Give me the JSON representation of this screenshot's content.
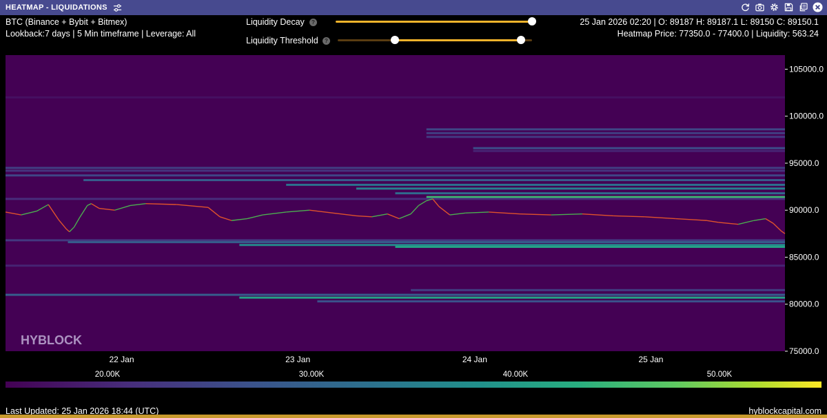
{
  "window": {
    "title": "HEATMAP - LIQUIDATIONS",
    "toolbar_icons": [
      "refresh-icon",
      "camera-icon",
      "gear-icon",
      "save-icon",
      "copy-icon",
      "close-icon"
    ]
  },
  "info": {
    "symbol": "BTC (Binance + Bybit + Bitmex)",
    "lookback": "Lookback:7 days | 5 Min timeframe | Leverage: All",
    "ohlc": "25 Jan 2026 02:20 | O: 89187 H: 89187.1 L: 89150 C: 89150.1",
    "heatmap_price": "Heatmap Price: 77350.0 - 77400.0 | Liquidity: 563.24"
  },
  "controls": {
    "decay_label": "Liquidity Decay",
    "threshold_label": "Liquidity Threshold",
    "help_glyph": "?",
    "decay_value": 1.0,
    "threshold_range": [
      0.29,
      0.94
    ]
  },
  "chart_data": {
    "type": "heatmap",
    "title": "",
    "watermark": "HYBLOCK",
    "x_ticks": [
      "22 Jan",
      "23 Jan",
      "24 Jan",
      "25 Jan"
    ],
    "y_ticks": [
      "105000.0",
      "100000.0",
      "95000.0",
      "90000.0",
      "85000.0",
      "80000.0",
      "75000.0"
    ],
    "ylim": [
      75000,
      106500
    ],
    "x_tick_fraction": [
      0.149,
      0.375,
      0.602,
      0.828
    ],
    "liquidation_bands": [
      {
        "price": 102000,
        "start": 0.0,
        "intensity": 0.05
      },
      {
        "price": 98600,
        "start": 0.54,
        "intensity": 0.25
      },
      {
        "price": 98200,
        "start": 0.54,
        "intensity": 0.22
      },
      {
        "price": 97800,
        "start": 0.54,
        "intensity": 0.2
      },
      {
        "price": 96600,
        "start": 0.6,
        "intensity": 0.28
      },
      {
        "price": 96300,
        "start": 0.6,
        "intensity": 0.12
      },
      {
        "price": 94500,
        "start": 0.0,
        "intensity": 0.22
      },
      {
        "price": 94200,
        "start": 0.0,
        "intensity": 0.18
      },
      {
        "price": 93700,
        "start": 0.0,
        "intensity": 0.25
      },
      {
        "price": 93200,
        "start": 0.1,
        "intensity": 0.35
      },
      {
        "price": 92700,
        "start": 0.36,
        "intensity": 0.45
      },
      {
        "price": 92300,
        "start": 0.45,
        "intensity": 0.5
      },
      {
        "price": 91800,
        "start": 0.5,
        "intensity": 0.42
      },
      {
        "price": 91400,
        "start": 0.54,
        "intensity": 0.75
      },
      {
        "price": 91200,
        "start": 0.0,
        "intensity": 0.15
      },
      {
        "price": 86800,
        "start": 0.0,
        "intensity": 0.2
      },
      {
        "price": 86600,
        "start": 0.08,
        "intensity": 0.35
      },
      {
        "price": 86300,
        "start": 0.3,
        "intensity": 0.55
      },
      {
        "price": 86100,
        "start": 0.5,
        "intensity": 0.65
      },
      {
        "price": 84100,
        "start": 0.0,
        "intensity": 0.12
      },
      {
        "price": 81500,
        "start": 0.52,
        "intensity": 0.22
      },
      {
        "price": 81000,
        "start": 0.0,
        "intensity": 0.35
      },
      {
        "price": 80700,
        "start": 0.3,
        "intensity": 0.65
      },
      {
        "price": 80300,
        "start": 0.4,
        "intensity": 0.3
      }
    ],
    "price_series": {
      "x": [
        0.0,
        0.02,
        0.04,
        0.055,
        0.068,
        0.078,
        0.082,
        0.088,
        0.095,
        0.105,
        0.11,
        0.12,
        0.14,
        0.16,
        0.18,
        0.22,
        0.26,
        0.275,
        0.29,
        0.31,
        0.33,
        0.36,
        0.39,
        0.42,
        0.45,
        0.47,
        0.49,
        0.505,
        0.52,
        0.53,
        0.54,
        0.548,
        0.556,
        0.57,
        0.59,
        0.62,
        0.66,
        0.7,
        0.74,
        0.78,
        0.82,
        0.86,
        0.9,
        0.915,
        0.94,
        0.96,
        0.975,
        0.985,
        0.995,
        1.0
      ],
      "y": [
        89800,
        89500,
        89900,
        90600,
        89000,
        88000,
        87700,
        88200,
        89200,
        90500,
        90700,
        90200,
        90000,
        90500,
        90700,
        90600,
        90300,
        89300,
        88900,
        89100,
        89500,
        89800,
        90000,
        89700,
        89400,
        89300,
        89600,
        89100,
        89600,
        90500,
        91000,
        91200,
        90400,
        89500,
        89700,
        89800,
        89600,
        89500,
        89600,
        89400,
        89300,
        89100,
        88900,
        88700,
        88500,
        88900,
        89100,
        88600,
        87800,
        87500
      ]
    }
  },
  "colorbar": {
    "ticks": [
      "20.00K",
      "30.00K",
      "40.00K",
      "50.00K"
    ],
    "tick_values": [
      20000,
      30000,
      40000,
      50000
    ],
    "range": [
      15000,
      55000
    ]
  },
  "footer": {
    "last_updated": "Last Updated: 25 Jan 2026 18:44 (UTC)",
    "site": "hyblockcapital.com"
  },
  "colors": {
    "titlebar": "#474a8f",
    "heatmap_base": "#440154",
    "slider": "#f4b42b",
    "candle_up": "#4caf50",
    "candle_down": "#e0532b"
  }
}
